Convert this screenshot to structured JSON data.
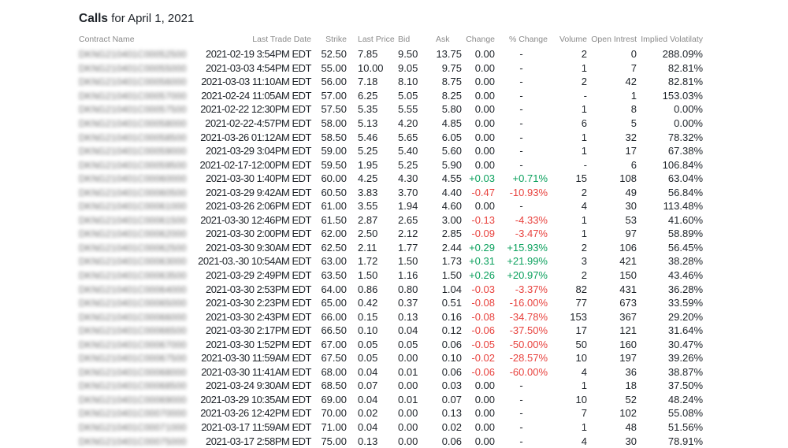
{
  "title": {
    "bold": "Calls",
    "rest": " for April 1, 2021"
  },
  "colors": {
    "positive": "#0ca15e",
    "negative": "#e8433f",
    "header_text": "#8a8a8a",
    "body_text": "#1d2228"
  },
  "columns": [
    {
      "label": "Contract Name"
    },
    {
      "label": "Last Trade Date"
    },
    {
      "label": "Strike"
    },
    {
      "label": "Last Price"
    },
    {
      "label": "Bid"
    },
    {
      "label": "Ask"
    },
    {
      "label": "Change"
    },
    {
      "label": "% Change"
    },
    {
      "label": "Volume"
    },
    {
      "label": "Open Intrest"
    },
    {
      "label": "Implied Volatilaty"
    }
  ],
  "rows": [
    [
      "DKNG210401C00052500",
      "2021-02-19 3:54PM EDT",
      "52.50",
      "7.85",
      "9.50",
      "13.75",
      "0.00",
      "-",
      "2",
      "0",
      "288.09%"
    ],
    [
      "DKNG210401C00055000",
      "2021-03-03 4:54PM EDT",
      "55.00",
      "10.00",
      "9.05",
      "9.75",
      "0.00",
      "-",
      "1",
      "7",
      "82.81%"
    ],
    [
      "DKNG210401C00056000",
      "2021-03-03 11:10AM EDT",
      "56.00",
      "7.18",
      "8.10",
      "8.75",
      "0.00",
      "-",
      "2",
      "42",
      "82.81%"
    ],
    [
      "DKNG210401C00057000",
      "2021-02-24 11:05AM EDT",
      "57.00",
      "6.25",
      "5.05",
      "8.25",
      "0.00",
      "-",
      "-",
      "1",
      "153.03%"
    ],
    [
      "DKNG210401C00057500",
      "2021-02-22 12:30PM EDT",
      "57.50",
      "5.35",
      "5.55",
      "5.80",
      "0.00",
      "-",
      "1",
      "8",
      "0.00%"
    ],
    [
      "DKNG210401C00058000",
      "2021-02-22-4:57PM EDT",
      "58.00",
      "5.13",
      "4.20",
      "4.85",
      "0.00",
      "-",
      "6",
      "5",
      "0.00%"
    ],
    [
      "DKNG210401C00058500",
      "2021-03-26 01:12AM EDT",
      "58.50",
      "5.46",
      "5.65",
      "6.05",
      "0.00",
      "-",
      "1",
      "32",
      "78.32%"
    ],
    [
      "DKNG210401C00059000",
      "2021-03-29 3:04PM EDT",
      "59.00",
      "5.25",
      "5.40",
      "5.60",
      "0.00",
      "-",
      "1",
      "17",
      "67.38%"
    ],
    [
      "DKNG210401C00059500",
      "2021-02-17-12:00PM EDT",
      "59.50",
      "1.95",
      "5.25",
      "5.90",
      "0.00",
      "-",
      "-",
      "6",
      "106.84%"
    ],
    [
      "DKNG210401C00060000",
      "2021-03-30 1:40PM EDT",
      "60.00",
      "4.25",
      "4.30",
      "4.55",
      "+0.03",
      "+0.71%",
      "15",
      "108",
      "63.04%"
    ],
    [
      "DKNG210401C00060500",
      "2021-03-29 9:42AM EDT",
      "60.50",
      "3.83",
      "3.70",
      "4.40",
      "-0.47",
      "-10.93%",
      "2",
      "49",
      "56.84%"
    ],
    [
      "DKNG210401C00061000",
      "2021-03-26 2:06PM EDT",
      "61.00",
      "3.55",
      "1.94",
      "4.60",
      "0.00",
      "-",
      "4",
      "30",
      "113.48%"
    ],
    [
      "DKNG210401C00061500",
      "2021-03-30 12:46PM EDT",
      "61.50",
      "2.87",
      "2.65",
      "3.00",
      "-0.13",
      "-4.33%",
      "1",
      "53",
      "41.60%"
    ],
    [
      "DKNG210401C00062000",
      "2021-03-30 2:00PM EDT",
      "62.00",
      "2.50",
      "2.12",
      "2.85",
      "-0.09",
      "-3.47%",
      "1",
      "97",
      "58.89%"
    ],
    [
      "DKNG210401C00062500",
      "2021-03-30 9:30AM EDT",
      "62.50",
      "2.11",
      "1.77",
      "2.44",
      "+0.29",
      "+15.93%",
      "2",
      "106",
      "56.45%"
    ],
    [
      "DKNG210401C00063000",
      "2021-03.-30 10:54AM EDT",
      "63.00",
      "1.72",
      "1.50",
      "1.73",
      "+0.31",
      "+21.99%",
      "3",
      "421",
      "38.28%"
    ],
    [
      "DKNG210401C00063500",
      "2021-03-29 2:49PM EDT",
      "63.50",
      "1.50",
      "1.16",
      "1.50",
      "+0.26",
      "+20.97%",
      "2",
      "150",
      "43.46%"
    ],
    [
      "DKNG210401C00064000",
      "2021-03-30 2:53PM EDT",
      "64.00",
      "0.86",
      "0.80",
      "1.04",
      "-0.03",
      "-3.37%",
      "82",
      "431",
      "36.28%"
    ],
    [
      "DKNG210401C00065000",
      "2021-03-30 2:23PM EDT",
      "65.00",
      "0.42",
      "0.37",
      "0.51",
      "-0.08",
      "-16.00%",
      "77",
      "673",
      "33.59%"
    ],
    [
      "DKNG210401C00066000",
      "2021-03-30 2:43PM EDT",
      "66.00",
      "0.15",
      "0.13",
      "0.16",
      "-0.08",
      "-34.78%",
      "153",
      "367",
      "29.20%"
    ],
    [
      "DKNG210401C00066500",
      "2021-03-30 2:17PM EDT",
      "66.50",
      "0.10",
      "0.04",
      "0.12",
      "-0.06",
      "-37.50%",
      "17",
      "121",
      "31.64%"
    ],
    [
      "DKNG210401C00067000",
      "2021-03-30 1:52PM EDT",
      "67.00",
      "0.05",
      "0.05",
      "0.06",
      "-0.05",
      "-50.00%",
      "50",
      "160",
      "30.47%"
    ],
    [
      "DKNG210401C00067500",
      "2021-03-30 11:59AM EDT",
      "67.50",
      "0.05",
      "0.00",
      "0.10",
      "-0.02",
      "-28.57%",
      "10",
      "197",
      "39.26%"
    ],
    [
      "DKNG210401C00068000",
      "2021-03-30 11:41AM EDT",
      "68.00",
      "0.04",
      "0.01",
      "0.06",
      "-0.06",
      "-60.00%",
      "4",
      "36",
      "38.87%"
    ],
    [
      "DKNG210401C00068500",
      "2021-03-24 9:30AM EDT",
      "68.50",
      "0.07",
      "0.00",
      "0.03",
      "0.00",
      "-",
      "1",
      "18",
      "37.50%"
    ],
    [
      "DKNG210401C00069000",
      "2021-03-29 10:35AM EDT",
      "69.00",
      "0.04",
      "0.01",
      "0.07",
      "0.00",
      "-",
      "10",
      "52",
      "48.24%"
    ],
    [
      "DKNG210401C00070000",
      "2021-03-26 12:42PM EDT",
      "70.00",
      "0.02",
      "0.00",
      "0.13",
      "0.00",
      "-",
      "7",
      "102",
      "55.08%"
    ],
    [
      "DKNG210401C00071000",
      "2021-03-17 11:59AM EDT",
      "71.00",
      "0.04",
      "0.00",
      "0.02",
      "0.00",
      "-",
      "1",
      "48",
      "51.56%"
    ],
    [
      "DKNG210401C00075000",
      "2021-03-17 2:58PM EDT",
      "75.00",
      "0.13",
      "0.00",
      "0.06",
      "0.00",
      "-",
      "4",
      "30",
      "78.91%"
    ]
  ]
}
